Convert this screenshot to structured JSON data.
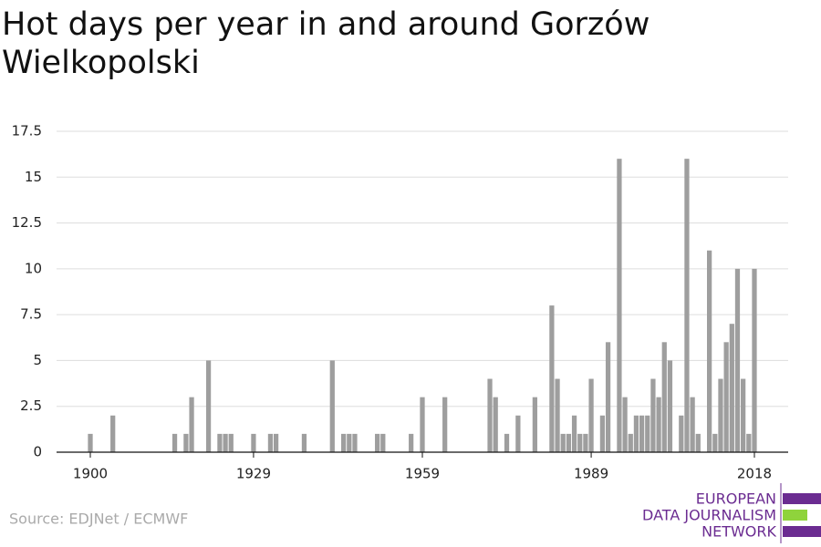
{
  "chart_data": {
    "type": "bar",
    "title": "Hot days per year in and around Gorzów Wielkopolski",
    "source": "Source: EDJNet / ECMWF",
    "logo_lines": [
      "EUROPEAN",
      "DATA JOURNALISM",
      "NETWORK"
    ],
    "x": [
      1900,
      1904,
      1915,
      1917,
      1918,
      1921,
      1923,
      1924,
      1925,
      1929,
      1932,
      1933,
      1938,
      1943,
      1945,
      1946,
      1947,
      1951,
      1952,
      1957,
      1959,
      1963,
      1971,
      1972,
      1974,
      1976,
      1979,
      1982,
      1983,
      1984,
      1985,
      1986,
      1987,
      1988,
      1989,
      1991,
      1992,
      1994,
      1995,
      1996,
      1997,
      1998,
      1999,
      2000,
      2001,
      2002,
      2003,
      2005,
      2006,
      2007,
      2008,
      2010,
      2011,
      2012,
      2013,
      2014,
      2015,
      2016,
      2017,
      2018
    ],
    "values": [
      1,
      2,
      1,
      1,
      3,
      5,
      1,
      1,
      1,
      1,
      1,
      1,
      1,
      5,
      1,
      1,
      1,
      1,
      1,
      1,
      3,
      3,
      4,
      3,
      1,
      2,
      3,
      8,
      4,
      1,
      1,
      2,
      1,
      1,
      4,
      2,
      6,
      16,
      3,
      1,
      2,
      2,
      2,
      4,
      3,
      6,
      5,
      2,
      16,
      3,
      1,
      11,
      1,
      4,
      6,
      7,
      10,
      4,
      1,
      10
    ],
    "color": "#9e9e9e",
    "xlim": [
      1894,
      2024
    ],
    "xticks": [
      1900,
      1929,
      1959,
      1989,
      2018
    ],
    "ylim": [
      0,
      17.5
    ],
    "yticks": [
      0,
      2.5,
      5,
      7.5,
      10,
      12.5,
      15,
      17.5
    ],
    "grid": true
  }
}
